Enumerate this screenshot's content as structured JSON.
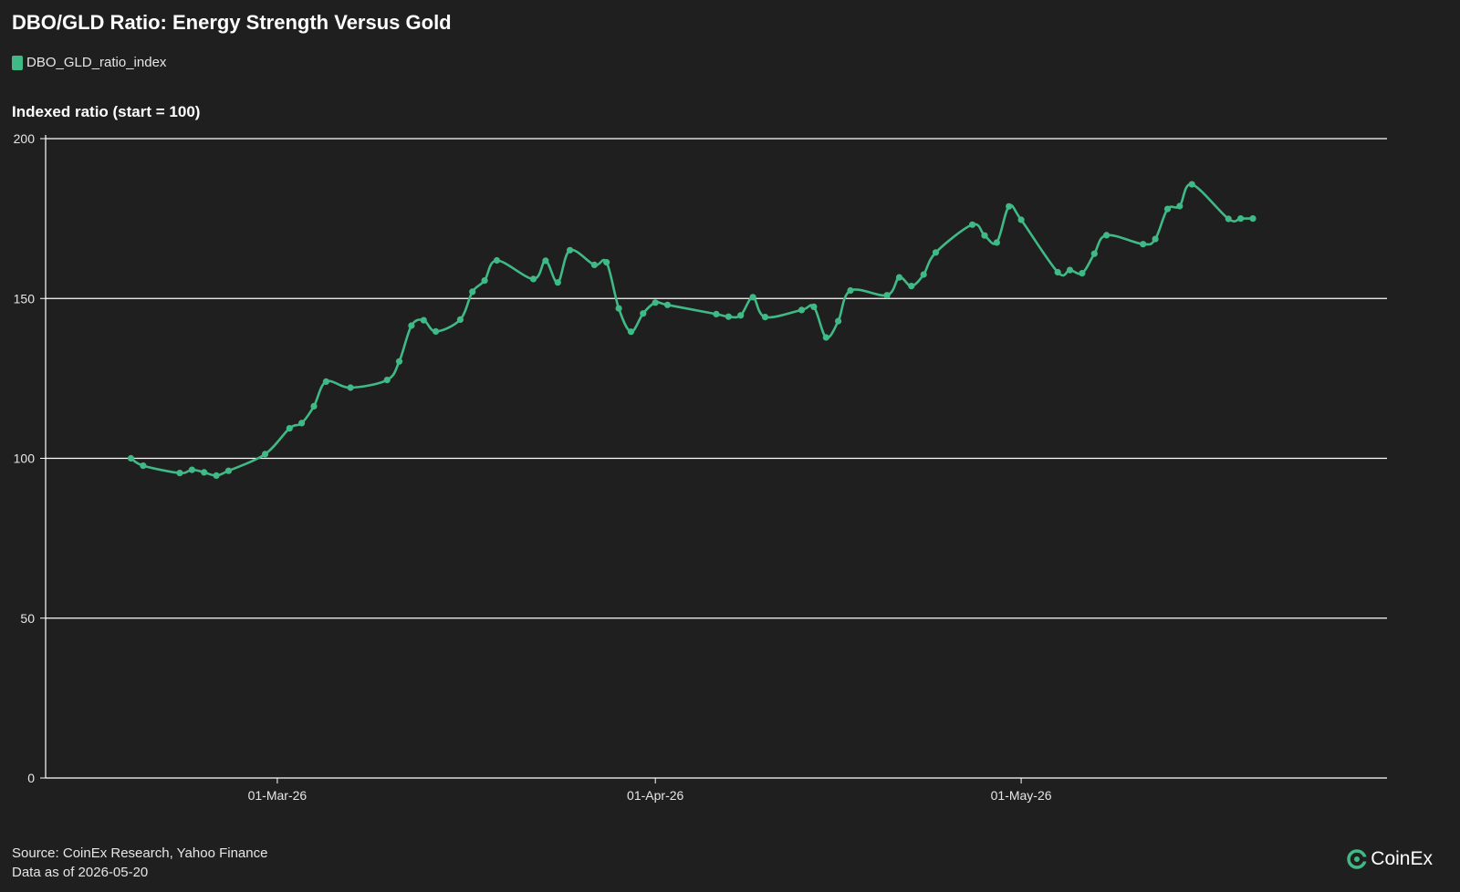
{
  "title": "DBO/GLD Ratio: Energy Strength Versus Gold",
  "legend": {
    "label": "DBO_GLD_ratio_index"
  },
  "y_axis_title": "Indexed ratio (start = 100)",
  "footer": {
    "source": "Source: CoinEx Research, Yahoo Finance",
    "asof": "Data as of 2026-05-20"
  },
  "logo": {
    "text": "CoinEx",
    "icon": "coinex-logo-icon"
  },
  "colors": {
    "background": "#1f1f1f",
    "series": "#3fba86",
    "grid": "#ffffff",
    "text": "#ffffff"
  },
  "chart_data": {
    "type": "line",
    "title": "DBO/GLD Ratio: Energy Strength Versus Gold",
    "ylabel": "Indexed ratio (start = 100)",
    "ylim": [
      0,
      200
    ],
    "yticks": [
      0,
      50,
      100,
      150,
      200
    ],
    "xlim": [
      "2026-02-10",
      "2026-05-31"
    ],
    "xticks": [
      {
        "date": "2026-03-01",
        "label": "01-Mar-26"
      },
      {
        "date": "2026-04-01",
        "label": "01-Apr-26"
      },
      {
        "date": "2026-05-01",
        "label": "01-May-26"
      }
    ],
    "grid": "horizontal",
    "legend_position": "top-left",
    "series": [
      {
        "name": "DBO_GLD_ratio_index",
        "x": [
          "2026-02-17",
          "2026-02-18",
          "2026-02-21",
          "2026-02-22",
          "2026-02-23",
          "2026-02-24",
          "2026-02-25",
          "2026-02-28",
          "2026-03-02",
          "2026-03-03",
          "2026-03-04",
          "2026-03-05",
          "2026-03-07",
          "2026-03-10",
          "2026-03-11",
          "2026-03-12",
          "2026-03-13",
          "2026-03-14",
          "2026-03-16",
          "2026-03-17",
          "2026-03-18",
          "2026-03-19",
          "2026-03-22",
          "2026-03-23",
          "2026-03-24",
          "2026-03-25",
          "2026-03-27",
          "2026-03-28",
          "2026-03-29",
          "2026-03-30",
          "2026-03-31",
          "2026-04-01",
          "2026-04-02",
          "2026-04-06",
          "2026-04-07",
          "2026-04-08",
          "2026-04-09",
          "2026-04-10",
          "2026-04-13",
          "2026-04-14",
          "2026-04-15",
          "2026-04-16",
          "2026-04-17",
          "2026-04-20",
          "2026-04-21",
          "2026-04-22",
          "2026-04-23",
          "2026-04-24",
          "2026-04-27",
          "2026-04-28",
          "2026-04-29",
          "2026-04-30",
          "2026-05-01",
          "2026-05-04",
          "2026-05-05",
          "2026-05-06",
          "2026-05-07",
          "2026-05-08",
          "2026-05-11",
          "2026-05-12",
          "2026-05-13",
          "2026-05-14",
          "2026-05-15",
          "2026-05-18",
          "2026-05-19",
          "2026-05-20"
        ],
        "values": [
          100.0,
          97.7,
          95.4,
          96.4,
          95.6,
          94.6,
          96.1,
          101.3,
          109.4,
          111.0,
          116.3,
          124.0,
          122.1,
          124.5,
          130.3,
          141.5,
          143.2,
          139.7,
          143.4,
          152.1,
          155.6,
          161.9,
          156.1,
          161.8,
          155.0,
          165.1,
          160.5,
          161.3,
          146.9,
          139.6,
          145.3,
          148.7,
          148.0,
          145.1,
          144.3,
          144.7,
          150.4,
          144.2,
          146.4,
          147.4,
          137.8,
          142.9,
          152.5,
          151.0,
          156.6,
          153.9,
          157.5,
          164.4,
          173.1,
          169.7,
          167.5,
          178.8,
          174.6,
          158.2,
          158.9,
          157.9,
          164.0,
          169.8,
          167.0,
          168.6,
          178.0,
          178.9,
          185.7,
          174.9,
          175.0,
          175.0
        ]
      }
    ]
  }
}
